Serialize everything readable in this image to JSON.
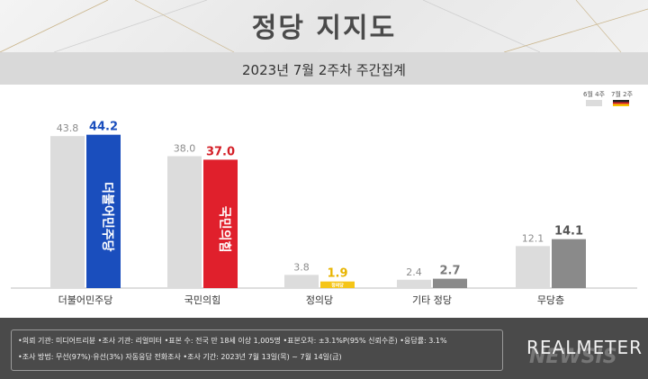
{
  "chart_data": {
    "type": "bar",
    "title": "정당 지지도",
    "subtitle": "2023년 7월 2주차 주간집계",
    "categories": [
      "더불어민주당",
      "국민의힘",
      "정의당",
      "기타 정당",
      "무당층"
    ],
    "series": [
      {
        "name": "6월 4주",
        "values": [
          43.8,
          38.0,
          3.8,
          2.4,
          12.1
        ]
      },
      {
        "name": "7월 2주",
        "values": [
          44.2,
          37.0,
          1.9,
          2.7,
          14.1
        ]
      }
    ],
    "bar_inner_labels": [
      "더불어민주당",
      "국민의힘",
      "정의당",
      "",
      ""
    ],
    "ylim": [
      0,
      48
    ],
    "legend_position": "top-right",
    "grid": false
  },
  "colors": {
    "prev": "#dcdcdc",
    "current": [
      "#1a4ebd",
      "#e0202c",
      "#f5c518",
      "#8a8a8a",
      "#8a8a8a"
    ],
    "current_value_text": [
      "#1a4ebd",
      "#d41f27",
      "#e8b400",
      "#7a7a7a",
      "#555555"
    ],
    "legend_current": [
      "#222222",
      "#d9232a",
      "#f6c200"
    ]
  },
  "footer": {
    "line1": "•의뢰 기관: 미디어트리뷴 •조사 기관: 리얼미터 •표본 수: 전국 만 18세 이상 1,005명 •표본오차: ±3.1%P(95% 신뢰수준) •응답률: 3.1%",
    "line2": "•조사 방법: 무선(97%)·유선(3%) 자동응답 전화조사 •조사 기간: 2023년 7월 13일(목) ~ 7월 14일(금)",
    "brand": "REALMETER",
    "watermark": "NEWSIS"
  }
}
